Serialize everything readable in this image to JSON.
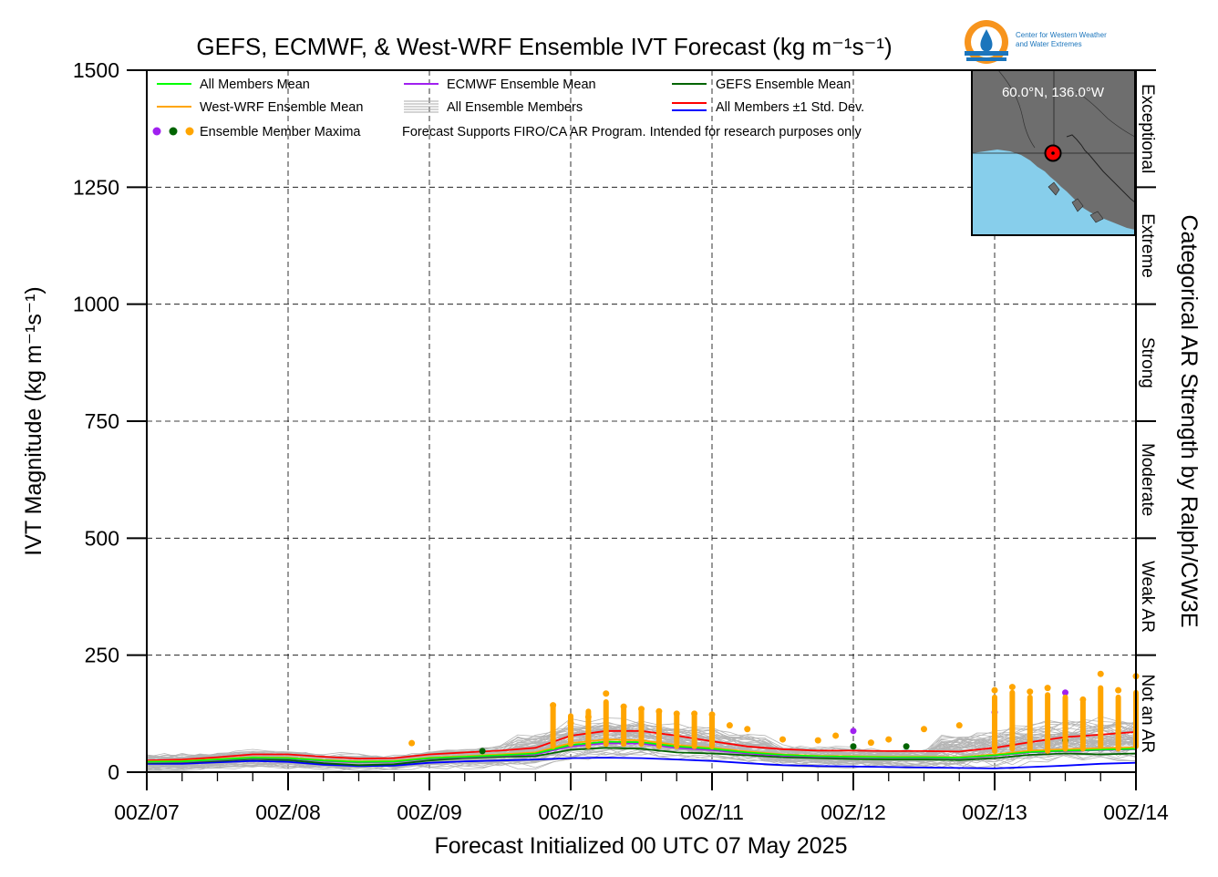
{
  "chart_data": {
    "type": "line",
    "title": "GEFS, ECMWF, & West-WRF Ensemble IVT Forecast (kg m⁻¹s⁻¹)",
    "xlabel": "Forecast Initialized 00 UTC 07 May 2025",
    "ylabel": "IVT Magnitude (kg m⁻¹s⁻¹)",
    "right_label": "Categorical AR Strength by Ralph/CW3E",
    "ylim": [
      0,
      1500
    ],
    "xlim_hours": [
      0,
      168
    ],
    "yticks": [
      0,
      250,
      500,
      750,
      1000,
      1250,
      1500
    ],
    "xtick_labels": [
      "00Z/07",
      "00Z/08",
      "00Z/09",
      "00Z/10",
      "00Z/11",
      "00Z/12",
      "00Z/13",
      "00Z/14"
    ],
    "grid": true,
    "categories": [
      {
        "label": "Not an AR",
        "from": 0,
        "to": 250
      },
      {
        "label": "Weak AR",
        "from": 250,
        "to": 500
      },
      {
        "label": "Moderate",
        "from": 500,
        "to": 750
      },
      {
        "label": "Strong",
        "from": 750,
        "to": 1000
      },
      {
        "label": "Extreme",
        "from": 1000,
        "to": 1250
      },
      {
        "label": "Exceptional",
        "from": 1250,
        "to": 1500
      }
    ],
    "legend": {
      "placement": "top-left",
      "entries": [
        {
          "label": "All Members Mean",
          "color": "#00ff00",
          "kind": "line"
        },
        {
          "label": "ECMWF Ensemble Mean",
          "color": "#a020f0",
          "kind": "line"
        },
        {
          "label": "GEFS Ensemble Mean",
          "color": "#006400",
          "kind": "line"
        },
        {
          "label": "West-WRF Ensemble Mean",
          "color": "#ffa500",
          "kind": "line"
        },
        {
          "label": "All Ensemble Members",
          "color": "#aaaaaa",
          "kind": "multi"
        },
        {
          "label": "All Members ±1 Std. Dev.",
          "color": "#ff0000",
          "color2": "#0000ff",
          "kind": "pair"
        },
        {
          "label": "Ensemble Member Maxima",
          "kind": "dots",
          "colors": [
            "#a020f0",
            "#006400",
            "#ffa500"
          ]
        },
        {
          "label": "Forecast Supports FIRO/CA AR Program. Intended for research purposes only",
          "kind": "note"
        }
      ]
    },
    "series": [
      {
        "name": "All Members Mean",
        "color": "#00ff00",
        "x": [
          0,
          6,
          12,
          18,
          24,
          30,
          36,
          42,
          48,
          54,
          60,
          66,
          72,
          78,
          84,
          90,
          96,
          102,
          108,
          114,
          120,
          126,
          132,
          138,
          144,
          150,
          156,
          162,
          168
        ],
        "values": [
          22,
          23,
          27,
          31,
          30,
          25,
          22,
          23,
          30,
          33,
          36,
          40,
          58,
          65,
          64,
          55,
          50,
          42,
          37,
          34,
          33,
          32,
          32,
          31,
          36,
          43,
          46,
          48,
          50
        ]
      },
      {
        "name": "ECMWF Ensemble Mean",
        "color": "#a020f0",
        "x": [
          0,
          6,
          12,
          18,
          24,
          30,
          36,
          42,
          48,
          54,
          60,
          66,
          72,
          78,
          84,
          90,
          96,
          102,
          108,
          114,
          120,
          126,
          132,
          138,
          144,
          150,
          156,
          162,
          168
        ],
        "values": [
          21,
          22,
          26,
          30,
          29,
          24,
          21,
          22,
          29,
          32,
          35,
          38,
          55,
          62,
          61,
          52,
          47,
          40,
          35,
          33,
          32,
          31,
          31,
          30,
          35,
          42,
          45,
          47,
          49
        ]
      },
      {
        "name": "GEFS Ensemble Mean",
        "color": "#006400",
        "x": [
          0,
          6,
          12,
          18,
          24,
          30,
          36,
          42,
          48,
          54,
          60,
          66,
          72,
          78,
          84,
          90,
          96,
          102,
          108,
          114,
          120,
          126,
          132,
          138,
          144,
          150,
          156,
          162,
          168
        ],
        "values": [
          20,
          21,
          24,
          28,
          26,
          19,
          15,
          17,
          25,
          30,
          33,
          34,
          48,
          52,
          50,
          42,
          40,
          36,
          32,
          30,
          28,
          27,
          27,
          26,
          30,
          37,
          40,
          38,
          40
        ]
      },
      {
        "name": "West-WRF Ensemble Mean",
        "color": "#ffa500",
        "x": [
          0,
          6,
          12,
          18,
          24,
          30,
          36,
          42,
          48,
          54,
          60,
          66,
          72,
          78,
          84,
          90,
          96,
          102,
          108,
          114,
          120,
          126,
          132,
          138,
          144,
          150,
          156,
          162,
          168
        ],
        "values": [
          23,
          24,
          28,
          32,
          31,
          26,
          23,
          24,
          31,
          34,
          38,
          42,
          62,
          70,
          68,
          58,
          52,
          44,
          38,
          35,
          34,
          33,
          33,
          32,
          38,
          46,
          49,
          51,
          53
        ]
      },
      {
        "name": "All Members ±1 Std. Dev. (upper)",
        "color": "#ff0000",
        "x": [
          0,
          6,
          12,
          18,
          24,
          30,
          36,
          42,
          48,
          54,
          60,
          66,
          72,
          78,
          84,
          90,
          96,
          102,
          108,
          114,
          120,
          126,
          132,
          138,
          144,
          150,
          156,
          162,
          168
        ],
        "values": [
          25,
          27,
          32,
          38,
          38,
          33,
          29,
          30,
          38,
          42,
          46,
          52,
          78,
          88,
          88,
          78,
          66,
          55,
          49,
          46,
          46,
          45,
          45,
          44,
          52,
          64,
          75,
          80,
          86
        ]
      },
      {
        "name": "All Members ±1 Std. Dev. (lower)",
        "color": "#0000ff",
        "x": [
          0,
          6,
          12,
          18,
          24,
          30,
          36,
          42,
          48,
          54,
          60,
          66,
          72,
          78,
          84,
          90,
          96,
          102,
          108,
          114,
          120,
          126,
          132,
          138,
          144,
          150,
          156,
          162,
          168
        ],
        "values": [
          18,
          18,
          21,
          24,
          22,
          16,
          13,
          14,
          20,
          23,
          25,
          27,
          30,
          31,
          30,
          27,
          24,
          19,
          15,
          13,
          12,
          11,
          10,
          9,
          8,
          11,
          14,
          18,
          20
        ]
      }
    ],
    "member_maxima": [
      {
        "x": 45,
        "y": 62,
        "color": "#ffa500"
      },
      {
        "x": 57,
        "y": 45,
        "color": "#006400"
      },
      {
        "x": 69,
        "y": 143,
        "color": "#ffa500"
      },
      {
        "x": 72,
        "y": 105,
        "color": "#ffa500"
      },
      {
        "x": 75,
        "y": 118,
        "color": "#ffa500"
      },
      {
        "x": 78,
        "y": 168,
        "color": "#ffa500"
      },
      {
        "x": 81,
        "y": 140,
        "color": "#ffa500"
      },
      {
        "x": 84,
        "y": 135,
        "color": "#ffa500"
      },
      {
        "x": 87,
        "y": 130,
        "color": "#ffa500"
      },
      {
        "x": 90,
        "y": 125,
        "color": "#ffa500"
      },
      {
        "x": 93,
        "y": 125,
        "color": "#ffa500"
      },
      {
        "x": 96,
        "y": 123,
        "color": "#ffa500"
      },
      {
        "x": 99,
        "y": 100,
        "color": "#ffa500"
      },
      {
        "x": 102,
        "y": 92,
        "color": "#ffa500"
      },
      {
        "x": 108,
        "y": 70,
        "color": "#ffa500"
      },
      {
        "x": 114,
        "y": 68,
        "color": "#ffa500"
      },
      {
        "x": 117,
        "y": 78,
        "color": "#ffa500"
      },
      {
        "x": 120,
        "y": 88,
        "color": "#a020f0"
      },
      {
        "x": 120,
        "y": 55,
        "color": "#006400"
      },
      {
        "x": 123,
        "y": 63,
        "color": "#ffa500"
      },
      {
        "x": 126,
        "y": 70,
        "color": "#ffa500"
      },
      {
        "x": 129,
        "y": 55,
        "color": "#006400"
      },
      {
        "x": 132,
        "y": 92,
        "color": "#ffa500"
      },
      {
        "x": 138,
        "y": 100,
        "color": "#ffa500"
      },
      {
        "x": 144,
        "y": 175,
        "color": "#ffa500"
      },
      {
        "x": 144,
        "y": 128,
        "color": "#a020f0"
      },
      {
        "x": 147,
        "y": 182,
        "color": "#ffa500"
      },
      {
        "x": 150,
        "y": 172,
        "color": "#ffa500"
      },
      {
        "x": 153,
        "y": 180,
        "color": "#ffa500"
      },
      {
        "x": 156,
        "y": 170,
        "color": "#a020f0"
      },
      {
        "x": 156,
        "y": 68,
        "color": "#006400"
      },
      {
        "x": 159,
        "y": 155,
        "color": "#ffa500"
      },
      {
        "x": 162,
        "y": 210,
        "color": "#ffa500"
      },
      {
        "x": 165,
        "y": 175,
        "color": "#ffa500"
      },
      {
        "x": 168,
        "y": 205,
        "color": "#ffa500"
      }
    ],
    "member_count": 60,
    "inset_map": {
      "label": "60.0°N, 136.0°W",
      "land_color": "#6e6e6e",
      "ocean_color": "#87ceeb"
    },
    "logo_text": [
      "Center for Western Weather",
      "and Water Extremes"
    ]
  }
}
